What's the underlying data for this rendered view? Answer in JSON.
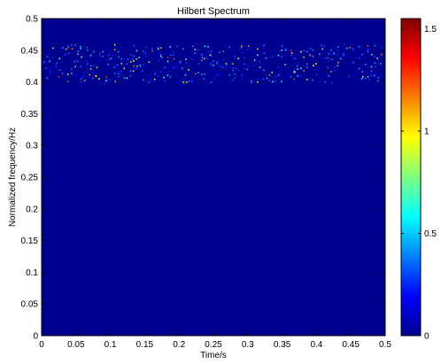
{
  "chart_data": {
    "type": "heatmap",
    "title": "Hilbert Spectrum",
    "xlabel": "Time/s",
    "ylabel": "Normalized frequency/Hz",
    "xlim": [
      0,
      0.5
    ],
    "ylim": [
      0,
      0.5
    ],
    "xticks": [
      "0",
      "0.05",
      "0.1",
      "0.15",
      "0.2",
      "0.25",
      "0.3",
      "0.35",
      "0.4",
      "0.45",
      "0.5"
    ],
    "yticks": [
      "0",
      "0.05",
      "0.1",
      "0.15",
      "0.2",
      "0.25",
      "0.3",
      "0.35",
      "0.4",
      "0.45",
      "0.5"
    ],
    "colorbar": {
      "range": [
        0,
        1.55
      ],
      "ticks": [
        "0",
        "0.5",
        "1",
        "1.5"
      ],
      "tick_values": [
        0,
        0.5,
        1,
        1.5
      ],
      "colormap": "jet"
    },
    "background_value": 0,
    "band": {
      "freq_range": [
        0.4,
        0.46
      ],
      "time_range": [
        0,
        0.5
      ],
      "description_of_values": "scattered sparse points with amplitudes up to about 1.5"
    },
    "grid": false,
    "legend": "none"
  },
  "colors": {
    "background_fill": "#00008F",
    "axis": "#000000"
  }
}
